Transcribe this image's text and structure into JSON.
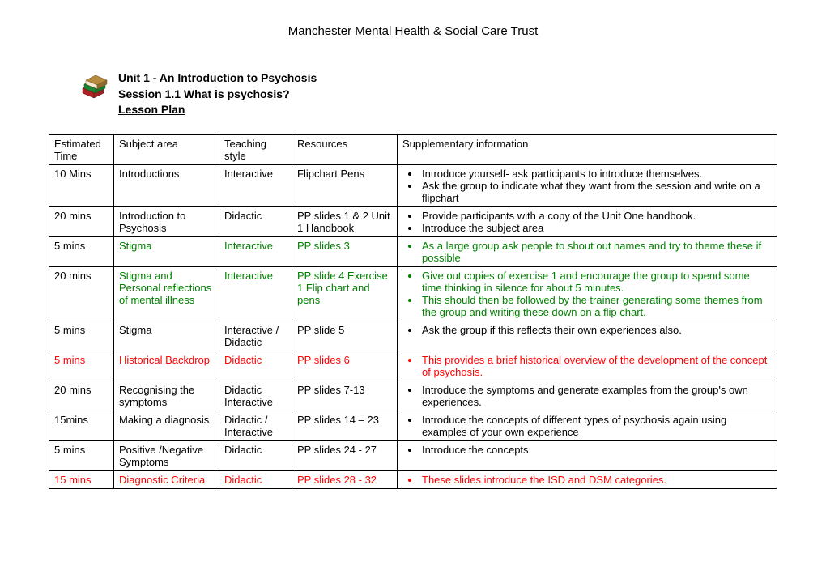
{
  "header": "Manchester Mental Health & Social Care Trust",
  "unit_line1": "Unit 1 - An Introduction to Psychosis",
  "unit_line2": "Session 1.1  What is psychosis?",
  "unit_line3": "Lesson Plan",
  "columns": {
    "c1": "Estimated Time",
    "c2": "Subject area",
    "c3": "Teaching style",
    "c4": "Resources",
    "c5": "Supplementary information"
  },
  "rows": [
    {
      "time": "10 Mins",
      "subject": "Introductions",
      "style": "Interactive",
      "resources": "Flipchart Pens",
      "info": [
        "Introduce yourself-  ask participants to introduce themselves.",
        "Ask the group to indicate what they want from the session and write on a flipchart"
      ],
      "color": ""
    },
    {
      "time": "20 mins",
      "subject": "Introduction to Psychosis",
      "style": "Didactic",
      "resources": "PP slides 1 & 2 Unit 1 Handbook",
      "info": [
        "Provide participants with a copy of the Unit One handbook.",
        "Introduce the subject area"
      ],
      "color": ""
    },
    {
      "time": "5 mins",
      "subject": "Stigma",
      "style": "Interactive",
      "resources": "PP slides 3",
      "info": [
        "As a large group ask people to shout out names and try to theme these if possible"
      ],
      "color": "green"
    },
    {
      "time": "20 mins",
      "subject": "Stigma  and Personal reflections of mental illness",
      "style": "Interactive",
      "resources": "PP slide 4 Exercise 1 Flip chart and pens",
      "info": [
        "Give out copies of exercise 1 and encourage the group to spend some time thinking in silence for about 5 minutes.",
        "This should then be followed by the trainer generating some themes from the group and writing these down on a flip chart."
      ],
      "color": "green"
    },
    {
      "time": "5 mins",
      "subject": "Stigma",
      "style": "Interactive / Didactic",
      "resources": "PP slide 5",
      "info": [
        "Ask the group if this reflects their own experiences also."
      ],
      "color": ""
    },
    {
      "time": "5 mins",
      "subject": "Historical Backdrop",
      "style": "Didactic",
      "resources": "PP slides 6",
      "info": [
        "This provides a brief historical overview of the development of the concept of psychosis."
      ],
      "color": "red"
    },
    {
      "time": "20 mins",
      "subject": "Recognising the symptoms",
      "style": "Didactic Interactive",
      "resources": "PP slides 7-13",
      "info": [
        "Introduce the symptoms  and generate examples from the group's own experiences."
      ],
      "color": ""
    },
    {
      "time": "15mins",
      "subject": "Making a diagnosis",
      "style": "Didactic / Interactive",
      "resources": "PP slides 14 – 23",
      "info": [
        " Introduce the concepts of different types of psychosis again using examples of your own experience"
      ],
      "color": ""
    },
    {
      "time": "5 mins",
      "subject": "Positive /Negative Symptoms",
      "style": "Didactic",
      "resources": "PP slides 24 - 27",
      "info": [
        "Introduce the concepts"
      ],
      "color": ""
    },
    {
      "time": "15 mins",
      "subject": "Diagnostic Criteria",
      "style": "Didactic",
      "resources": "PP slides 28 - 32",
      "info": [
        "These slides introduce the ISD and DSM categories."
      ],
      "color": "red"
    }
  ]
}
